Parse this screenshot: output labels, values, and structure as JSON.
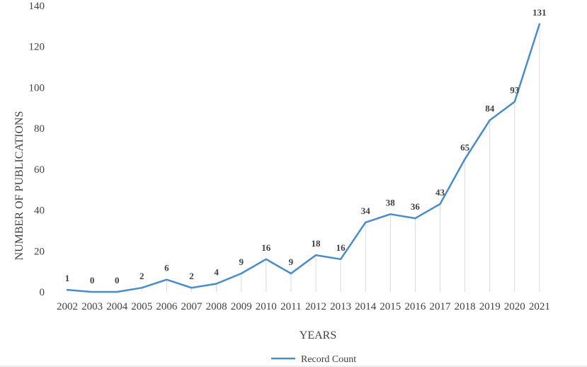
{
  "colors": {
    "series": "#4a8bc9",
    "drop_line": "#d9d9d9",
    "text": "#404040",
    "bottom_rule": "#d9d9d9"
  },
  "chart_data": {
    "type": "line",
    "title": "",
    "xlabel": "YEARS",
    "ylabel": "NUMBER OF PUBLICATIONS",
    "ylim": [
      0,
      140
    ],
    "yticks": [
      0,
      20,
      40,
      60,
      80,
      100,
      120,
      140
    ],
    "grid": false,
    "drop_lines": true,
    "legend_position": "bottom-center",
    "categories": [
      "2002",
      "2003",
      "2004",
      "2005",
      "2006",
      "2007",
      "2008",
      "2009",
      "2010",
      "2011",
      "2012",
      "2013",
      "2014",
      "2015",
      "2016",
      "2017",
      "2018",
      "2019",
      "2020",
      "2021"
    ],
    "series": [
      {
        "name": "Record Count",
        "values": [
          1,
          0,
          0,
          2,
          6,
          2,
          4,
          9,
          16,
          9,
          18,
          16,
          34,
          38,
          36,
          43,
          65,
          84,
          93,
          131
        ]
      }
    ]
  }
}
